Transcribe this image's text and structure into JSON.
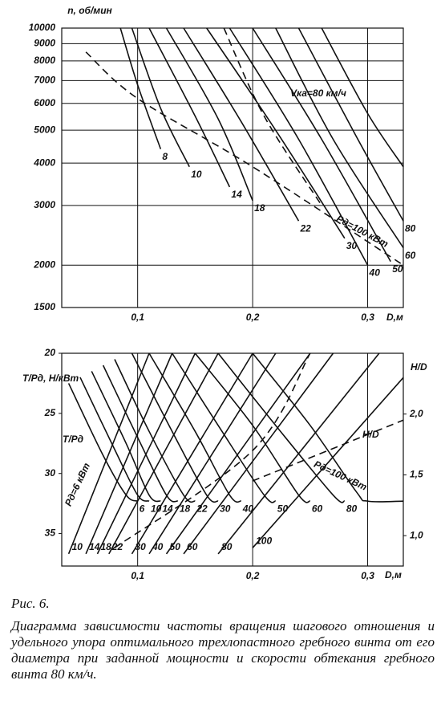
{
  "chart_data": [
    {
      "type": "line",
      "y_label": "n, об/мин",
      "x_label": "D,м",
      "annotation": "Vка=80 км/ч",
      "power_label": "Pд=100 кВт",
      "xlim": [
        0.034,
        0.331
      ],
      "ylim": [
        1500,
        10000
      ],
      "ylog": true,
      "grid": true,
      "color": "#111",
      "xticks": [
        {
          "value": 0.1,
          "label": "0,1"
        },
        {
          "value": 0.2,
          "label": "0,2"
        },
        {
          "value": 0.3,
          "label": "0,3"
        }
      ],
      "yticks": [
        1500,
        2000,
        3000,
        4000,
        5000,
        6000,
        7000,
        8000,
        9000,
        10000
      ],
      "series": [
        {
          "name": "8",
          "x": [
            0.085,
            0.1,
            0.12
          ],
          "values": [
            10000,
            6800,
            4400
          ]
        },
        {
          "name": "10",
          "x": [
            0.095,
            0.12,
            0.145
          ],
          "values": [
            10000,
            5800,
            3900
          ]
        },
        {
          "name": "14",
          "x": [
            0.11,
            0.15,
            0.18
          ],
          "values": [
            10000,
            5500,
            3400
          ]
        },
        {
          "name": "18",
          "x": [
            0.125,
            0.17,
            0.2
          ],
          "values": [
            10000,
            5400,
            3100
          ]
        },
        {
          "name": "22",
          "x": [
            0.14,
            0.19,
            0.24
          ],
          "values": [
            10000,
            5300,
            2700
          ]
        },
        {
          "name": "30",
          "x": [
            0.16,
            0.22,
            0.28
          ],
          "values": [
            10000,
            5000,
            2400
          ]
        },
        {
          "name": "40",
          "x": [
            0.18,
            0.24,
            0.3
          ],
          "values": [
            10000,
            4700,
            2000
          ]
        },
        {
          "name": "50",
          "x": [
            0.2,
            0.26,
            0.32
          ],
          "values": [
            10000,
            4700,
            2050
          ]
        },
        {
          "name": "60",
          "x": [
            0.22,
            0.27,
            0.331
          ],
          "values": [
            10000,
            4700,
            2250
          ]
        },
        {
          "name": "80",
          "x": [
            0.24,
            0.29,
            0.331
          ],
          "values": [
            10000,
            4800,
            2700
          ]
        },
        {
          "x": [
            0.26,
            0.3,
            0.331
          ],
          "values": [
            10000,
            5600,
            3900
          ]
        },
        {
          "x": [
            0.055,
            0.1,
            0.2,
            0.331
          ],
          "values": [
            8500,
            6200,
            3900,
            2000
          ],
          "dash": true
        },
        {
          "x": [
            0.175,
            0.21,
            0.26
          ],
          "values": [
            10000,
            5500,
            3000
          ],
          "dash": true
        }
      ]
    },
    {
      "type": "line",
      "y_label": "T/Pд, Н/кВт",
      "y2_label": "H/D",
      "x_label": "D,м",
      "inner_y_label": "T/Pд",
      "inner_y2_label": "H/D",
      "low_power_label": "Pд=6 кВт",
      "power_label": "Pд=100 кВт",
      "xlim": [
        0.034,
        0.331
      ],
      "ylim": [
        20,
        37.7
      ],
      "y_reversed": true,
      "y2lim": [
        0.75,
        2.5
      ],
      "grid": true,
      "color": "#111",
      "xticks": [
        {
          "value": 0.1,
          "label": "0,1"
        },
        {
          "value": 0.2,
          "label": "0,2"
        },
        {
          "value": 0.3,
          "label": "0,3"
        }
      ],
      "yticks": [
        20,
        25,
        30,
        35
      ],
      "y2ticks": [
        {
          "value": 1,
          "label": "1,0"
        },
        {
          "value": 1.5,
          "label": "1,5"
        },
        {
          "value": 2,
          "label": "2,0"
        }
      ],
      "series": [
        {
          "name": "6",
          "x": [
            0.04,
            0.07,
            0.09,
            0.1
          ],
          "values": [
            22.5,
            28.5,
            31.8,
            32.3
          ]
        },
        {
          "name": "10",
          "x": [
            0.05,
            0.08,
            0.1,
            0.11
          ],
          "values": [
            22,
            28,
            31.8,
            32.3
          ]
        },
        {
          "name": "14",
          "x": [
            0.06,
            0.09,
            0.11,
            0.12
          ],
          "values": [
            21.5,
            27.5,
            31.8,
            32.3
          ]
        },
        {
          "name": "18",
          "x": [
            0.07,
            0.1,
            0.125,
            0.135
          ],
          "values": [
            21,
            27,
            31.8,
            32.3
          ]
        },
        {
          "name": "22",
          "x": [
            0.08,
            0.11,
            0.14,
            0.15
          ],
          "values": [
            20.5,
            26.5,
            31.8,
            32.3
          ]
        },
        {
          "name": "30",
          "x": [
            0.095,
            0.13,
            0.16,
            0.17
          ],
          "values": [
            20,
            26.5,
            31.8,
            32.3
          ]
        },
        {
          "name": "40",
          "x": [
            0.11,
            0.15,
            0.18,
            0.19
          ],
          "values": [
            20,
            26.5,
            31.8,
            32.3
          ]
        },
        {
          "name": "50",
          "x": [
            0.13,
            0.17,
            0.21,
            0.22
          ],
          "values": [
            20,
            26,
            31.8,
            32.3
          ]
        },
        {
          "name": "60",
          "x": [
            0.15,
            0.2,
            0.24,
            0.25
          ],
          "values": [
            20,
            26,
            31.8,
            32.3
          ]
        },
        {
          "name": "80",
          "x": [
            0.17,
            0.22,
            0.27,
            0.28
          ],
          "values": [
            20,
            26,
            31.8,
            32.3
          ]
        },
        {
          "x": [
            0.2,
            0.25,
            0.29,
            0.3,
            0.331
          ],
          "values": [
            20,
            26,
            31.5,
            32.3,
            32.3
          ]
        },
        {
          "name": "10",
          "axis": "y2",
          "x": [
            0.04,
            0.11
          ],
          "values": [
            0.85,
            2.5
          ]
        },
        {
          "name": "14",
          "axis": "y2",
          "x": [
            0.055,
            0.13
          ],
          "values": [
            0.85,
            2.5
          ]
        },
        {
          "name": "18",
          "axis": "y2",
          "x": [
            0.065,
            0.15
          ],
          "values": [
            0.85,
            2.5
          ]
        },
        {
          "name": "22",
          "axis": "y2",
          "x": [
            0.075,
            0.17
          ],
          "values": [
            0.85,
            2.5
          ]
        },
        {
          "name": "30",
          "axis": "y2",
          "x": [
            0.095,
            0.2
          ],
          "values": [
            0.85,
            2.5
          ]
        },
        {
          "name": "40",
          "axis": "y2",
          "x": [
            0.11,
            0.22
          ],
          "values": [
            0.85,
            2.5
          ]
        },
        {
          "name": "50",
          "axis": "y2",
          "x": [
            0.125,
            0.25
          ],
          "values": [
            0.85,
            2.5
          ]
        },
        {
          "name": "60",
          "axis": "y2",
          "x": [
            0.14,
            0.27
          ],
          "values": [
            0.85,
            2.5
          ]
        },
        {
          "name": "80",
          "axis": "y2",
          "x": [
            0.17,
            0.31
          ],
          "values": [
            0.85,
            2.5
          ]
        },
        {
          "name": "100",
          "axis": "y2",
          "x": [
            0.2,
            0.331
          ],
          "values": [
            0.9,
            2.3
          ]
        },
        {
          "axis": "y2",
          "x": [
            0.08,
            0.2,
            0.25
          ],
          "values": [
            0.9,
            1.7,
            2.5
          ],
          "dash": true
        },
        {
          "axis": "y2",
          "x": [
            0.2,
            0.331
          ],
          "values": [
            1.45,
            1.95
          ],
          "dash": true
        }
      ]
    }
  ],
  "caption": {
    "figure": "Рис. 6.",
    "text": "Диаграмма зависимости частоты вращения шагового отношения и удельного упора оптимального трехлопастного гребного винта от его диаметра при заданной мощности и скорости обтекания гребного винта 80 км/ч."
  }
}
